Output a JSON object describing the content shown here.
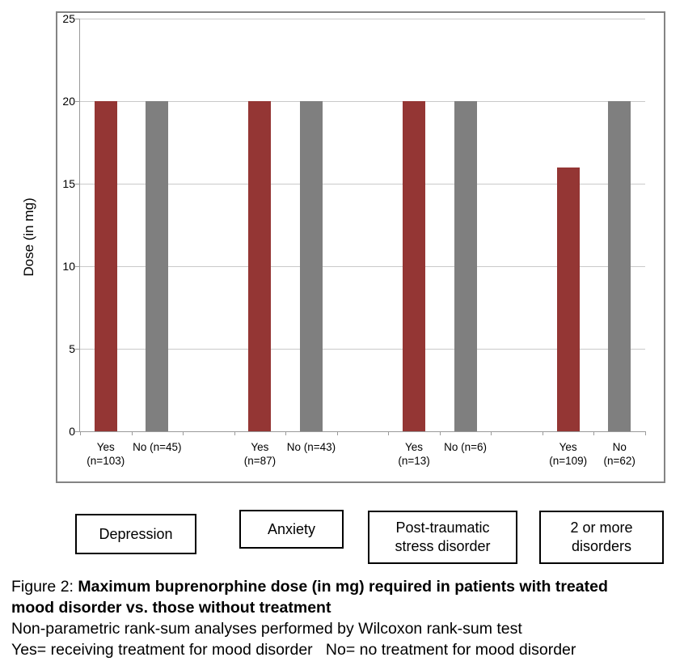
{
  "colors": {
    "yes_bar": "#943634",
    "no_bar": "#7f7f7f",
    "gridline": "#c9c9c9",
    "axis": "#9a9a9a",
    "frame_border": "#848484",
    "box_border": "#000000"
  },
  "chart_data": {
    "type": "bar",
    "title": "Maximum buprenorphine dose (in mg) required in patients with treated mood disorder vs. those without treatment",
    "ylabel": "Dose (in mg)",
    "xlabel": "",
    "ylim": [
      0,
      25
    ],
    "yticks": [
      0,
      5,
      10,
      15,
      20,
      25
    ],
    "grid": "horizontal",
    "legend_position": "none",
    "series_colors": {
      "Yes": "#943634",
      "No": "#7f7f7f"
    },
    "groups": [
      {
        "name": "Depression",
        "bars": [
          {
            "series": "Yes",
            "label": "Yes\n(n=103)",
            "value": 20
          },
          {
            "series": "No",
            "label": "No (n=45)",
            "value": 20
          }
        ]
      },
      {
        "name": "Anxiety",
        "bars": [
          {
            "series": "Yes",
            "label": "Yes\n(n=87)",
            "value": 20
          },
          {
            "series": "No",
            "label": "No (n=43)",
            "value": 20
          }
        ]
      },
      {
        "name": "Post-traumatic stress disorder",
        "bars": [
          {
            "series": "Yes",
            "label": "Yes\n(n=13)",
            "value": 20
          },
          {
            "series": "No",
            "label": "No (n=6)",
            "value": 20
          }
        ]
      },
      {
        "name": "2 or more disorders",
        "bars": [
          {
            "series": "Yes",
            "label": "Yes\n(n=109)",
            "value": 16
          },
          {
            "series": "No",
            "label": "No (n=62)",
            "value": 20
          }
        ]
      }
    ]
  },
  "group_boxes": [
    {
      "label": "Depression"
    },
    {
      "label": "Anxiety"
    },
    {
      "label": "Post-traumatic\nstress disorder"
    },
    {
      "label": "2 or more\ndisorders"
    }
  ],
  "caption": {
    "figure_label": "Figure 2: ",
    "title_bold": "Maximum buprenorphine dose (in mg) required in patients with treated mood disorder vs. those without treatment",
    "line2": "Non-parametric rank-sum analyses performed by Wilcoxon rank-sum test",
    "line3": "Yes= receiving treatment for mood disorder   No= no treatment for mood disorder"
  }
}
